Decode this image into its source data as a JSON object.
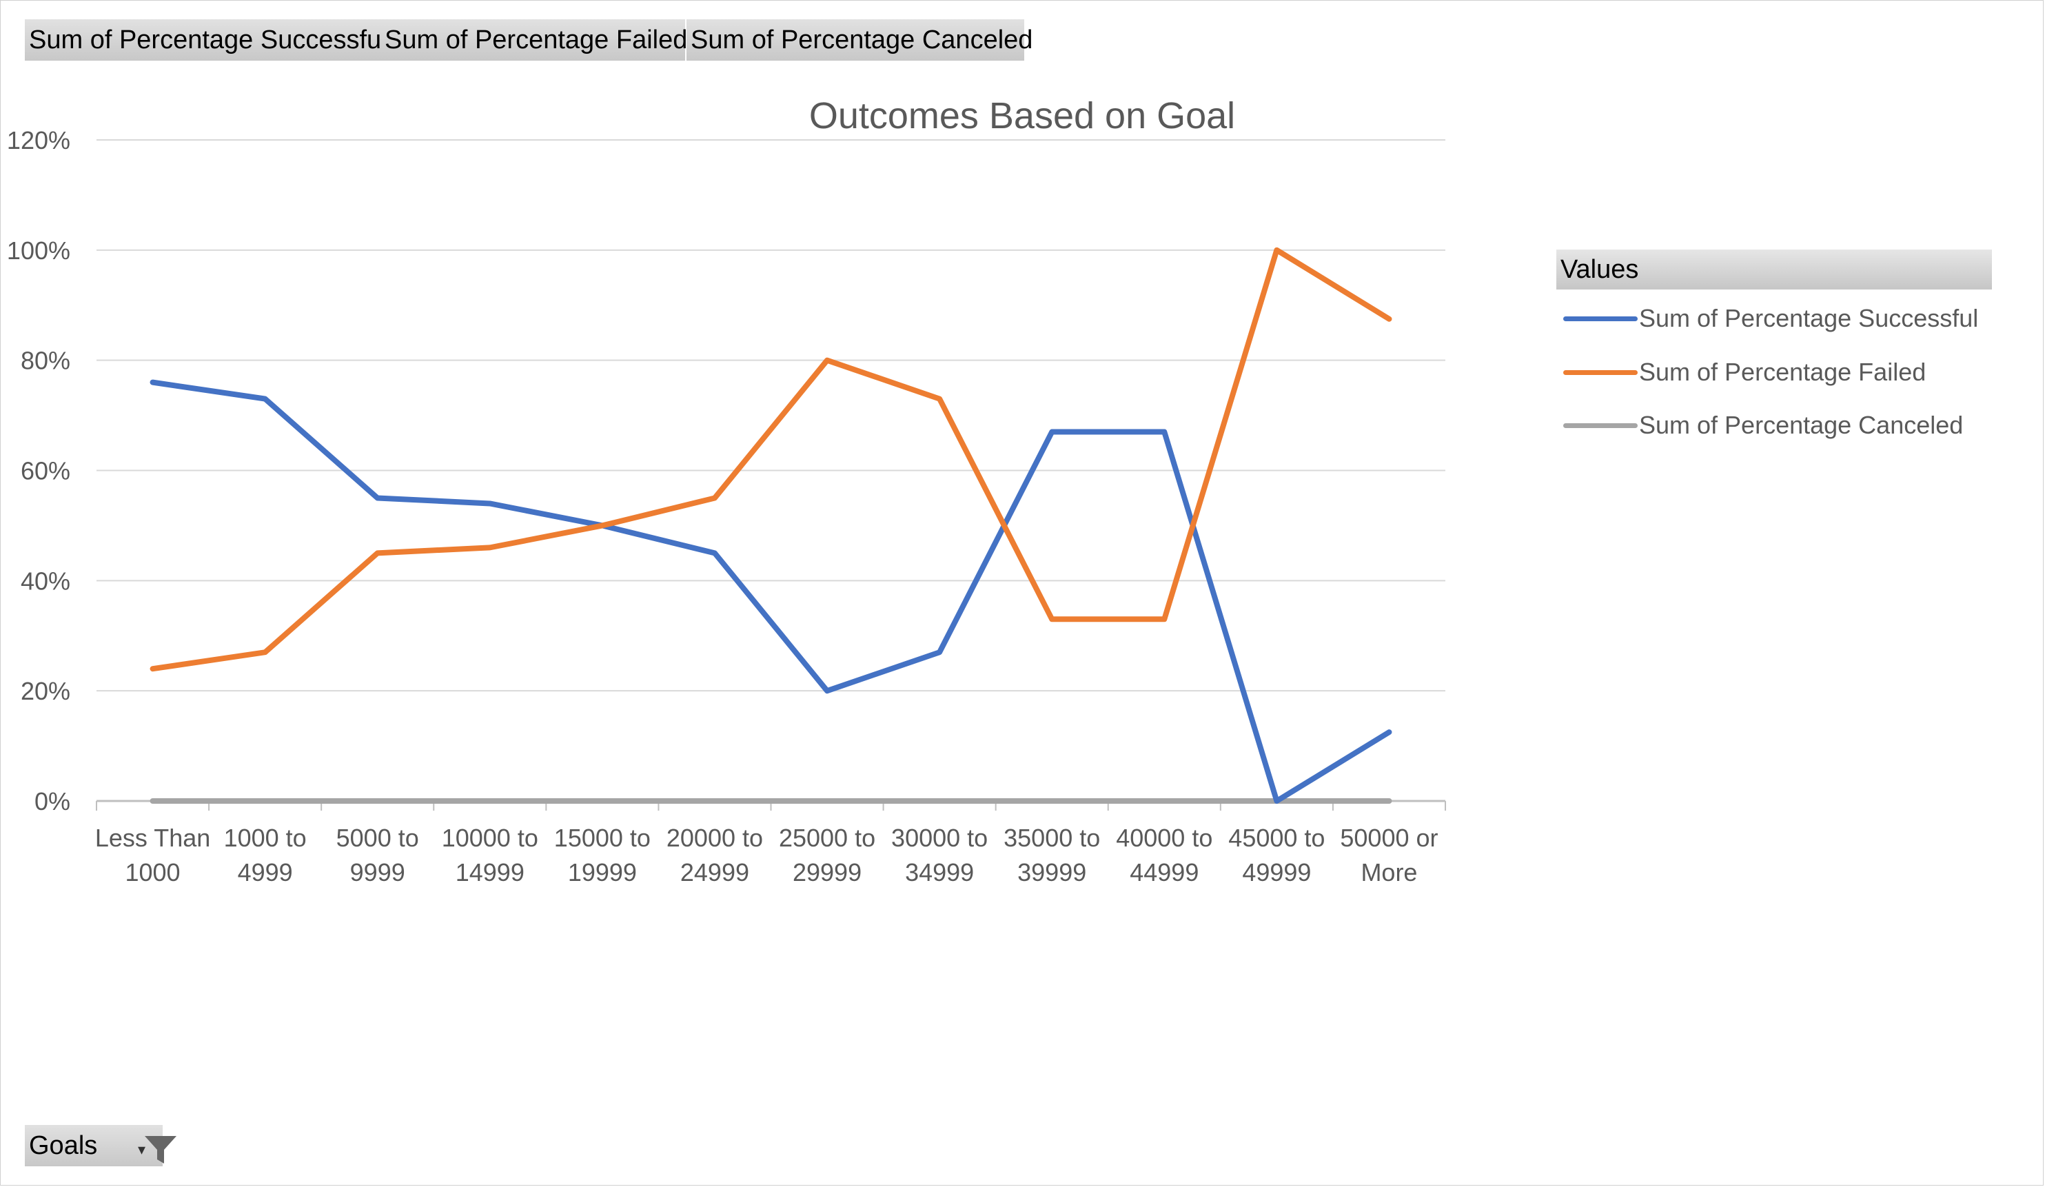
{
  "field_buttons": [
    {
      "label": "Sum of Percentage  Successful"
    },
    {
      "label": "Sum of Percentage  Failed"
    },
    {
      "label": "Sum of Percentage  Canceled"
    }
  ],
  "filter_button": {
    "label": "Goals",
    "dropdown_glyph": "▾",
    "icon": "filter-funnel-icon"
  },
  "legend": {
    "header": "Values",
    "items": [
      {
        "label": "Sum of Percentage Successful",
        "color": "#4472C4"
      },
      {
        "label": "Sum of Percentage Failed",
        "color": "#ED7D31"
      },
      {
        "label": "Sum of Percentage Canceled",
        "color": "#A5A5A5"
      }
    ]
  },
  "chart_data": {
    "type": "line",
    "title": "Outcomes Based on Goal",
    "xlabel": "",
    "ylabel": "",
    "categories": [
      [
        "Less Than",
        "1000"
      ],
      [
        "1000 to",
        "4999"
      ],
      [
        "5000 to",
        "9999"
      ],
      [
        "10000 to",
        "14999"
      ],
      [
        "15000 to",
        "19999"
      ],
      [
        "20000 to",
        "24999"
      ],
      [
        "25000 to",
        "29999"
      ],
      [
        "30000 to",
        "34999"
      ],
      [
        "35000 to",
        "39999"
      ],
      [
        "40000 to",
        "44999"
      ],
      [
        "45000 to",
        "49999"
      ],
      [
        "50000 or",
        "More"
      ]
    ],
    "ylim": [
      0,
      1.2
    ],
    "yticks": [
      0,
      0.2,
      0.4,
      0.6,
      0.8,
      1.0,
      1.2
    ],
    "ytick_labels": [
      "0%",
      "20%",
      "40%",
      "60%",
      "80%",
      "100%",
      "120%"
    ],
    "grid": true,
    "legend_position": "right",
    "series": [
      {
        "name": "Sum of Percentage Successful",
        "color": "#4472C4",
        "values": [
          0.76,
          0.73,
          0.55,
          0.54,
          0.5,
          0.45,
          0.2,
          0.27,
          0.67,
          0.67,
          0.0,
          0.125
        ]
      },
      {
        "name": "Sum of Percentage Failed",
        "color": "#ED7D31",
        "values": [
          0.24,
          0.27,
          0.45,
          0.46,
          0.5,
          0.55,
          0.8,
          0.73,
          0.33,
          0.33,
          1.0,
          0.875
        ]
      },
      {
        "name": "Sum of Percentage Canceled",
        "color": "#A5A5A5",
        "values": [
          0,
          0,
          0,
          0,
          0,
          0,
          0,
          0,
          0,
          0,
          0,
          0
        ]
      }
    ]
  }
}
